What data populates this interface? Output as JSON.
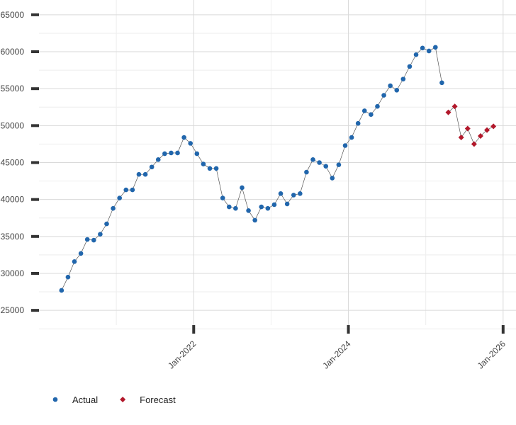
{
  "chart_data": {
    "type": "line",
    "ylim": [
      23000,
      67000
    ],
    "yticks": [
      25000,
      30000,
      35000,
      40000,
      45000,
      50000,
      55000,
      60000,
      65000
    ],
    "xlim": [
      "2020-01",
      "2026-03"
    ],
    "xticks": [
      {
        "value": "2022-01",
        "label": "Jan-2022"
      },
      {
        "value": "2024-01",
        "label": "Jan-2024"
      },
      {
        "value": "2026-01",
        "label": "Jan-2026"
      }
    ],
    "grid": true,
    "legend": "bottom-left",
    "line_color": "#555555",
    "series": [
      {
        "name": "Actual",
        "color": "#2166ac",
        "marker": "circle",
        "x": [
          "2020-04",
          "2020-05",
          "2020-06",
          "2020-07",
          "2020-08",
          "2020-09",
          "2020-10",
          "2020-11",
          "2020-12",
          "2021-01",
          "2021-02",
          "2021-03",
          "2021-04",
          "2021-05",
          "2021-06",
          "2021-07",
          "2021-08",
          "2021-09",
          "2021-10",
          "2021-11",
          "2021-12",
          "2022-01",
          "2022-02",
          "2022-03",
          "2022-04",
          "2022-05",
          "2022-06",
          "2022-07",
          "2022-08",
          "2022-09",
          "2022-10",
          "2022-11",
          "2022-12",
          "2023-01",
          "2023-02",
          "2023-03",
          "2023-04",
          "2023-05",
          "2023-06",
          "2023-07",
          "2023-08",
          "2023-09",
          "2023-10",
          "2023-11",
          "2023-12",
          "2024-01",
          "2024-02",
          "2024-03",
          "2024-04",
          "2024-05",
          "2024-06",
          "2024-07",
          "2024-08",
          "2024-09",
          "2024-10",
          "2024-11",
          "2024-12",
          "2025-01",
          "2025-02",
          "2025-03"
        ],
        "values": [
          27700,
          29500,
          31600,
          32700,
          34600,
          34500,
          35300,
          36700,
          38800,
          40200,
          41300,
          41300,
          43400,
          43400,
          44400,
          45400,
          46200,
          46300,
          46300,
          48400,
          47600,
          46200,
          44800,
          44200,
          44200,
          40200,
          39000,
          38800,
          41600,
          38500,
          37200,
          39000,
          38800,
          39300,
          40800,
          39400,
          40600,
          40800,
          43700,
          45400,
          45000,
          44500,
          42900,
          44700,
          47300,
          48400,
          50300,
          52000,
          51500,
          52600,
          54100,
          55400,
          54800,
          56300,
          58000,
          59600,
          60500,
          60100,
          60600,
          55800
        ]
      },
      {
        "name": "Forecast",
        "color": "#b2182b",
        "marker": "diamond",
        "x": [
          "2025-04",
          "2025-05",
          "2025-06",
          "2025-07",
          "2025-08",
          "2025-09",
          "2025-10",
          "2025-11"
        ],
        "values": [
          51800,
          52600,
          48400,
          49600,
          47500,
          48600,
          49400,
          49900
        ]
      }
    ]
  }
}
